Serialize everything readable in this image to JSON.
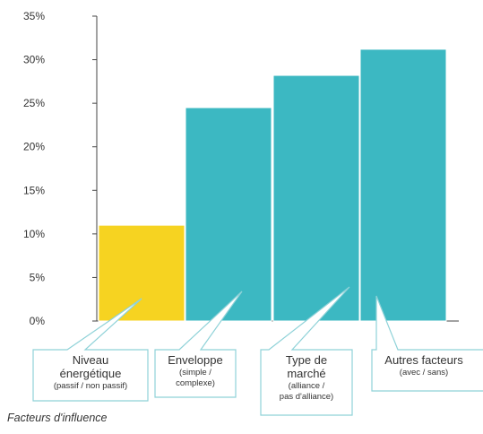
{
  "chart_data": {
    "type": "bar",
    "categories": [
      {
        "title": [
          "Niveau",
          "énergétique"
        ],
        "subtitle": [
          "(passif / non passif)"
        ]
      },
      {
        "title": [
          "Enveloppe"
        ],
        "subtitle": [
          "(simple /",
          "complexe)"
        ]
      },
      {
        "title": [
          "Type de",
          "marché"
        ],
        "subtitle": [
          "(alliance /",
          "pas d'alliance)"
        ]
      },
      {
        "title": [
          "Autres facteurs"
        ],
        "subtitle": [
          "(avec / sans)"
        ]
      }
    ],
    "values": [
      11,
      24.5,
      28.2,
      31.2
    ],
    "colors": [
      "#f6d321",
      "#3cb8c2",
      "#3cb8c2",
      "#3cb8c2"
    ],
    "callout_border": "#8fd2d8",
    "ylim": [
      0,
      35
    ],
    "yticks": [
      "0%",
      "5%",
      "10%",
      "15%",
      "20%",
      "25%",
      "30%",
      "35%"
    ],
    "ytick_values": [
      0,
      5,
      10,
      15,
      20,
      25,
      30,
      35
    ],
    "grid": false,
    "xlabel": "Facteurs d'influence",
    "ylabel": "",
    "title": ""
  }
}
